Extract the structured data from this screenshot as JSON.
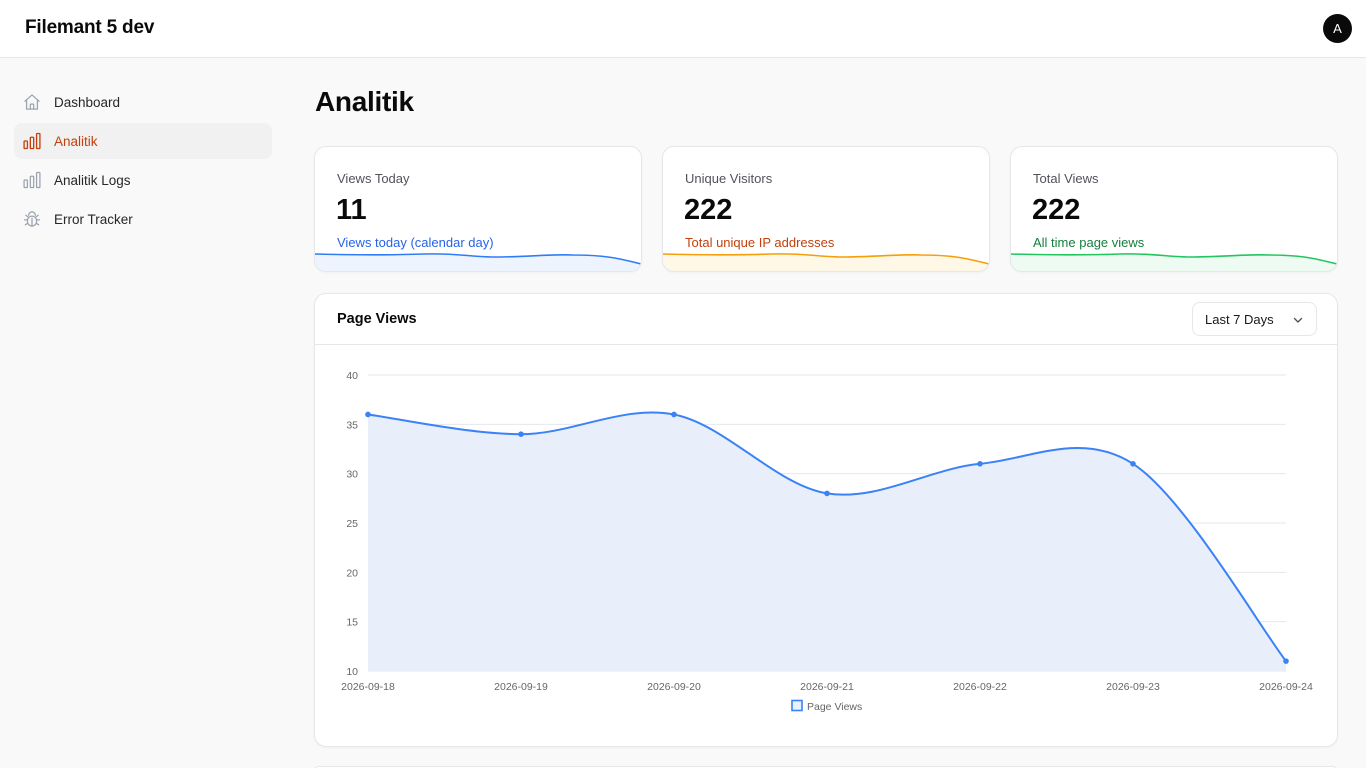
{
  "app": {
    "title": "Filemant 5 dev",
    "avatar_initial": "A"
  },
  "sidebar": {
    "items": [
      {
        "label": "Dashboard",
        "icon": "home-icon",
        "active": false
      },
      {
        "label": "Analitik",
        "icon": "bar-chart-icon",
        "active": true
      },
      {
        "label": "Analitik Logs",
        "icon": "bar-chart-icon",
        "active": false
      },
      {
        "label": "Error Tracker",
        "icon": "bug-icon",
        "active": false
      }
    ]
  },
  "page": {
    "title": "Analitik"
  },
  "stats": [
    {
      "label": "Views Today",
      "value": "11",
      "description": "Views today (calendar day)",
      "color": "#2563eb"
    },
    {
      "label": "Unique Visitors",
      "value": "222",
      "description": "Total unique IP addresses",
      "color": "#c2410c"
    },
    {
      "label": "Total Views",
      "value": "222",
      "description": "All time page views",
      "color": "#15803d"
    }
  ],
  "chart_panel": {
    "title": "Page Views",
    "range_selected": "Last 7 Days"
  },
  "colors": {
    "accent": "#c2410c",
    "line": "#3b82f6",
    "area": "#e8effb",
    "spark_blue": "#2f7cf6",
    "spark_orange": "#f59e0b",
    "spark_green": "#22c55e"
  },
  "chart_data": {
    "type": "area",
    "title": "",
    "xlabel": "",
    "ylabel": "",
    "x": [
      "2026-09-18",
      "2026-09-19",
      "2026-09-20",
      "2026-09-21",
      "2026-09-22",
      "2026-09-23",
      "2026-09-24"
    ],
    "series": [
      {
        "name": "Page Views",
        "values": [
          36,
          34,
          36,
          28,
          31,
          31,
          11
        ]
      }
    ],
    "ylim": [
      10,
      40
    ],
    "yticks": [
      10,
      15,
      20,
      25,
      30,
      35,
      40
    ],
    "grid": true,
    "legend": "bottom-center"
  }
}
